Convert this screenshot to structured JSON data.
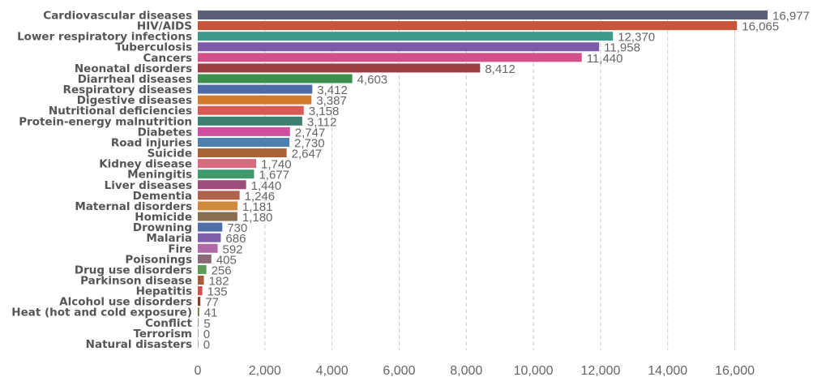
{
  "chart_data": {
    "type": "bar",
    "orientation": "horizontal",
    "title": "",
    "xlabel": "",
    "ylabel": "",
    "xlim": [
      0,
      17000
    ],
    "xticks": [
      0,
      2000,
      4000,
      6000,
      8000,
      10000,
      12000,
      14000,
      16000
    ],
    "xtick_labels": [
      "0",
      "2,000",
      "4,000",
      "6,000",
      "8,000",
      "10,000",
      "12,000",
      "14,000",
      "16,000"
    ],
    "grid": true,
    "categories": [
      "Cardiovascular diseases",
      "HIV/AIDS",
      "Lower respiratory infections",
      "Tuberculosis",
      "Cancers",
      "Neonatal disorders",
      "Diarrheal diseases",
      "Respiratory diseases",
      "Digestive diseases",
      "Nutritional deficiencies",
      "Protein-energy malnutrition",
      "Diabetes",
      "Road injuries",
      "Suicide",
      "Kidney disease",
      "Meningitis",
      "Liver diseases",
      "Dementia",
      "Maternal disorders",
      "Homicide",
      "Drowning",
      "Malaria",
      "Fire",
      "Poisonings",
      "Drug use disorders",
      "Parkinson disease",
      "Hepatitis",
      "Alcohol use disorders",
      "Heat (hot and cold exposure)",
      "Conflict",
      "Terrorism",
      "Natural disasters"
    ],
    "values": [
      16977,
      16065,
      12370,
      11958,
      11440,
      8412,
      4603,
      3412,
      3387,
      3158,
      3112,
      2747,
      2730,
      2647,
      1740,
      1677,
      1440,
      1246,
      1181,
      1180,
      730,
      686,
      592,
      405,
      256,
      182,
      135,
      77,
      41,
      5,
      0,
      0
    ],
    "value_labels": [
      "16,977",
      "16,065",
      "12,370",
      "11,958",
      "11,440",
      "8,412",
      "4,603",
      "3,412",
      "3,387",
      "3,158",
      "3,112",
      "2,747",
      "2,730",
      "2,647",
      "1,740",
      "1,677",
      "1,440",
      "1,246",
      "1,181",
      "1,180",
      "730",
      "686",
      "592",
      "405",
      "256",
      "182",
      "135",
      "77",
      "41",
      "5",
      "0",
      "0"
    ],
    "colors": [
      "#5b6078",
      "#c8553a",
      "#3f9a8a",
      "#7e5aa8",
      "#d4508a",
      "#9b3f45",
      "#3d8f4e",
      "#4e6aa6",
      "#d07a2e",
      "#d95b55",
      "#3e7e6f",
      "#d14ea0",
      "#4d80ae",
      "#a86238",
      "#d96a7e",
      "#3f9a6b",
      "#9b4f7a",
      "#b0614d",
      "#d08a3e",
      "#8a6e50",
      "#4f6ea6",
      "#7e60a8",
      "#b06aa8",
      "#8a6a78",
      "#5e9a5a",
      "#a85a3a",
      "#d94a4a",
      "#8a3a2a",
      "#6a6a3a",
      "#999999",
      "#999999",
      "#999999"
    ]
  }
}
